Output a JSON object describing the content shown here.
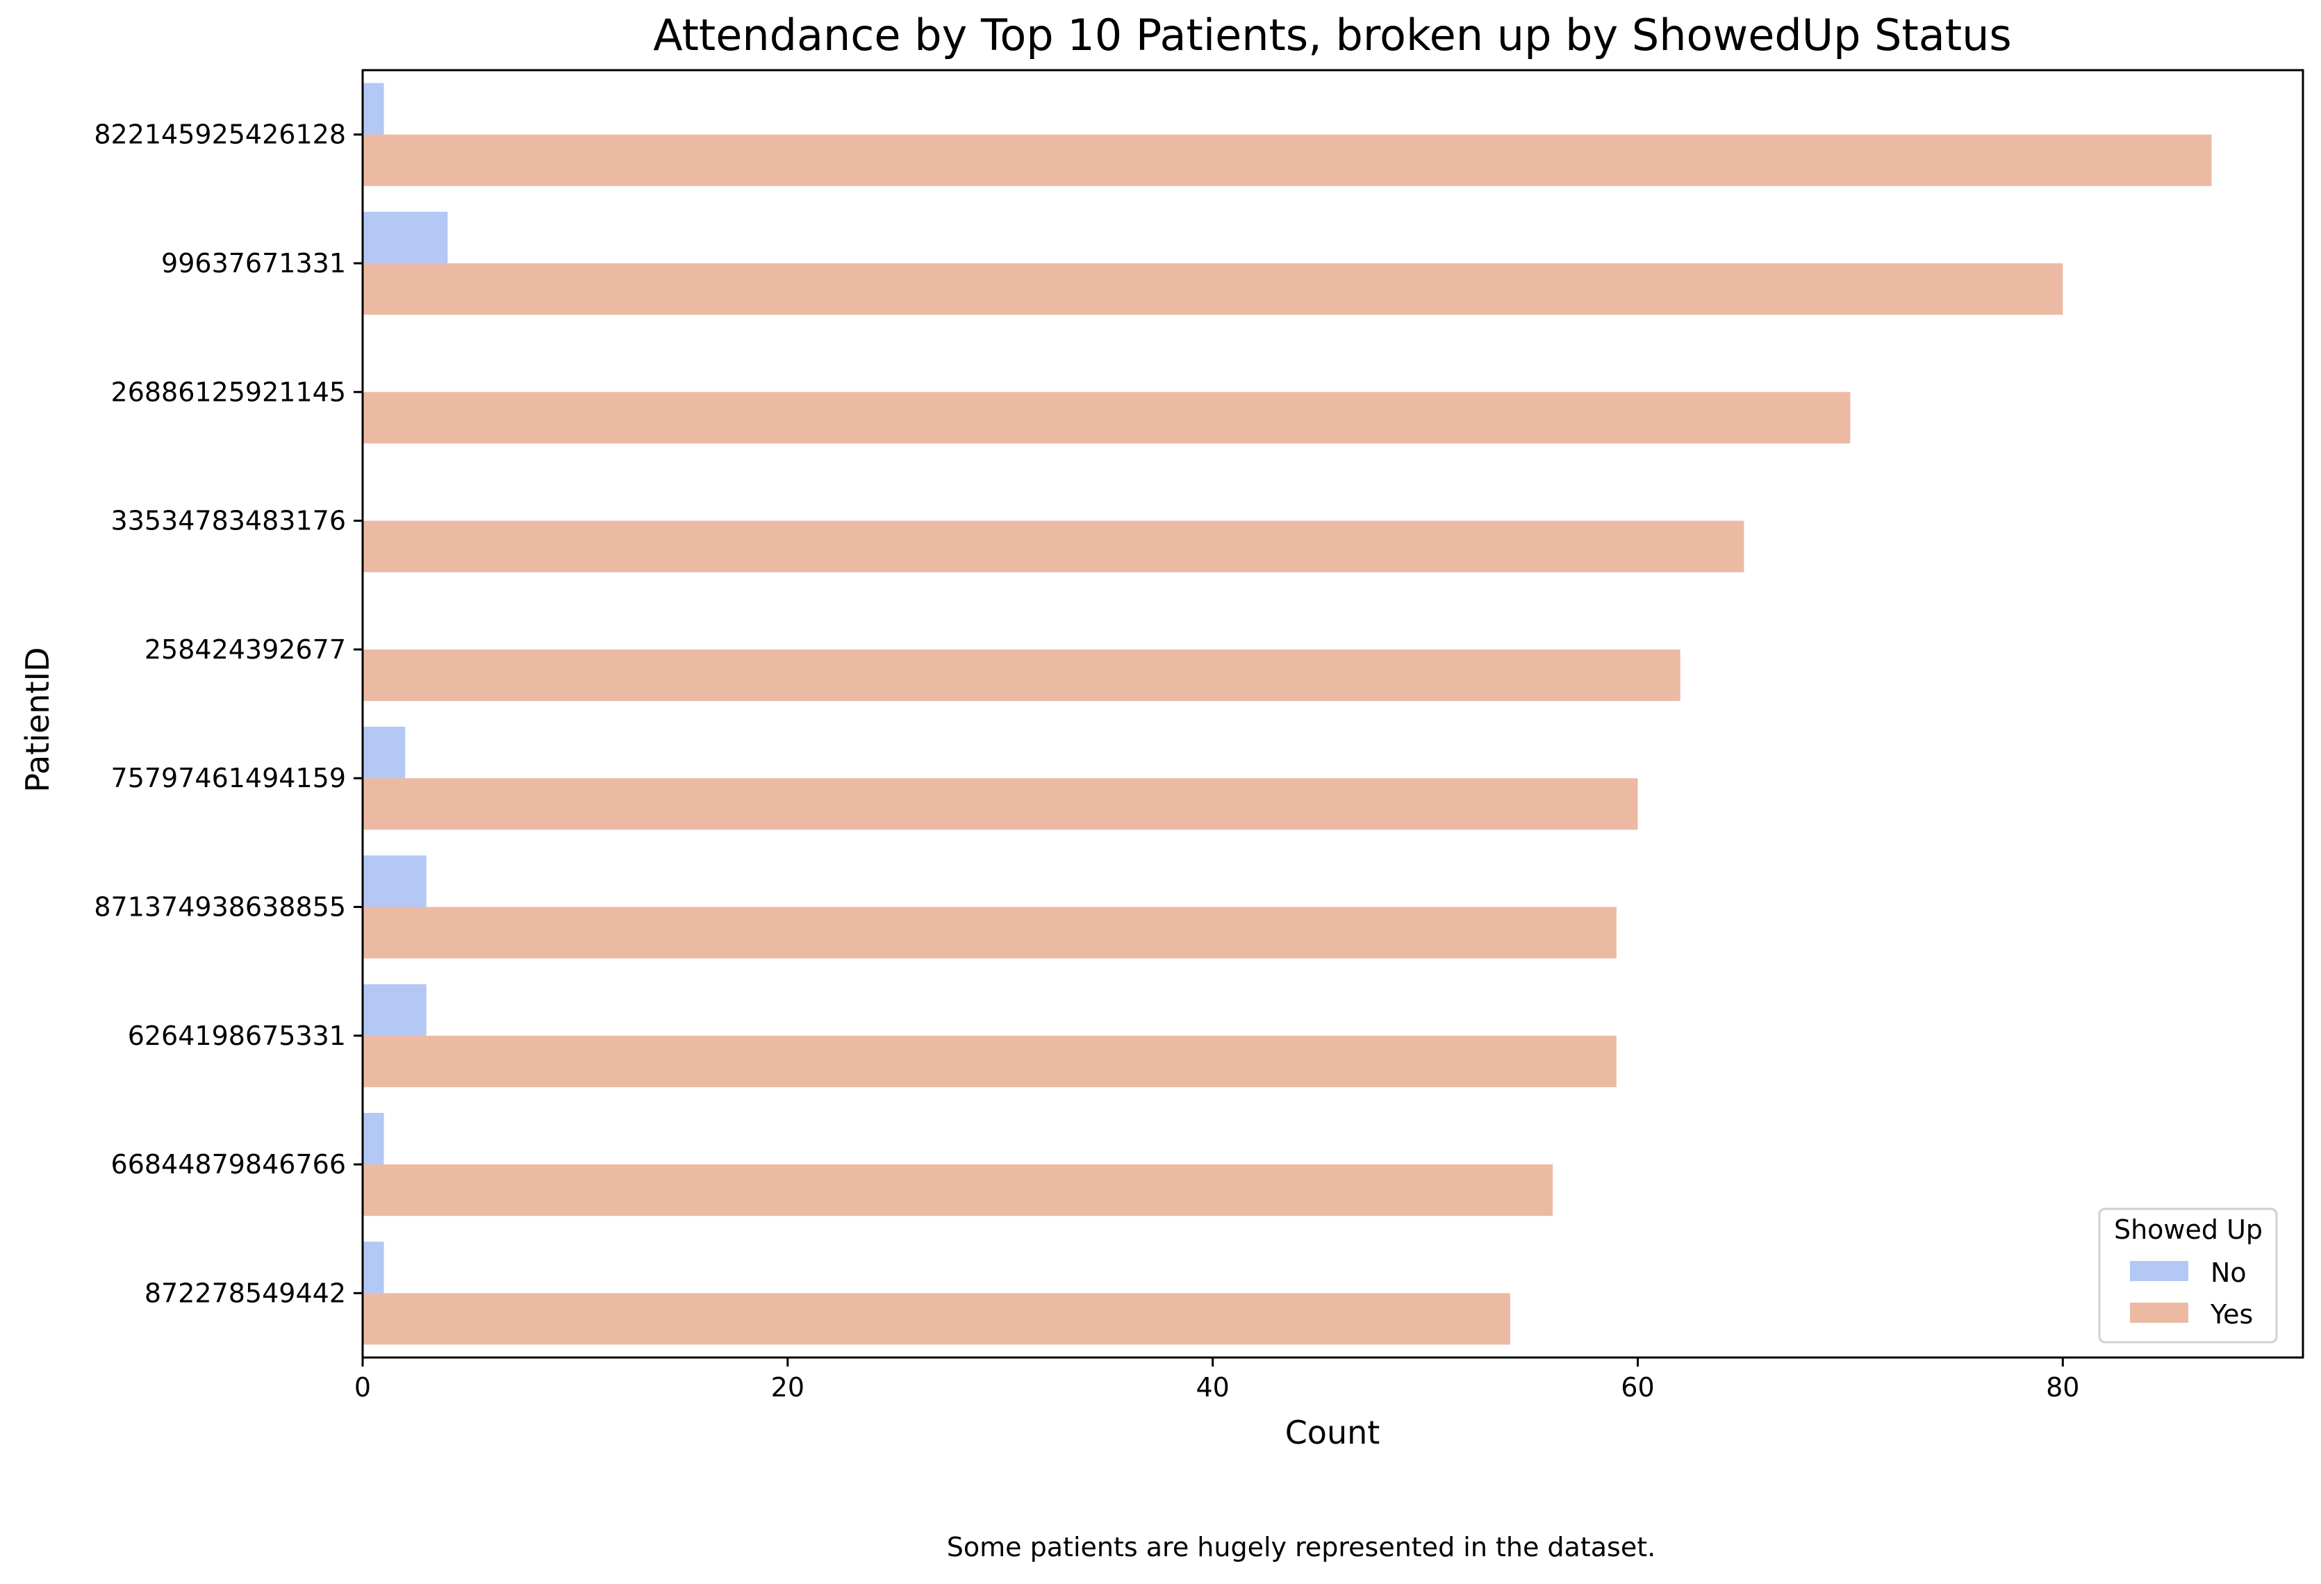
{
  "chart_data": {
    "type": "bar",
    "orientation": "horizontal",
    "title": "Attendance by Top 10 Patients, broken up by ShowedUp Status",
    "xlabel": "Count",
    "ylabel": "PatientID",
    "xlim": [
      0,
      91.3
    ],
    "xticks": [
      0,
      20,
      40,
      60,
      80
    ],
    "grid": false,
    "categories": [
      "822145925426128",
      "99637671331",
      "26886125921145",
      "33534783483176",
      "258424392677",
      "75797461494159",
      "871374938638855",
      "6264198675331",
      "66844879846766",
      "872278549442"
    ],
    "series": [
      {
        "name": "No",
        "color": "#b3c8f5",
        "values": [
          1,
          4,
          0,
          0,
          0,
          2,
          3,
          3,
          1,
          1
        ]
      },
      {
        "name": "Yes",
        "color": "#ecbaa3",
        "values": [
          87,
          80,
          70,
          65,
          62,
          60,
          59,
          59,
          56,
          54
        ]
      }
    ],
    "legend": {
      "title": "Showed Up",
      "placement": "lower-right"
    },
    "caption": "Some patients are hugely represented in the dataset."
  }
}
